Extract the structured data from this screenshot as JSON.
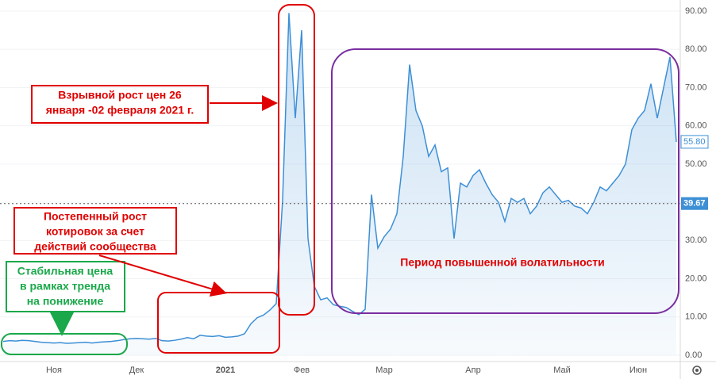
{
  "chart_data": {
    "type": "area",
    "categories": [
      null,
      null,
      null,
      null,
      null,
      null,
      null,
      null,
      "Ноя",
      null,
      null,
      null,
      null,
      null,
      null,
      null,
      null,
      null,
      null,
      null,
      null,
      "Дек",
      null,
      null,
      null,
      null,
      null,
      null,
      null,
      null,
      null,
      null,
      null,
      null,
      null,
      "2021",
      null,
      null,
      null,
      null,
      null,
      null,
      null,
      null,
      null,
      null,
      null,
      "Фев",
      null,
      null,
      null,
      null,
      null,
      null,
      null,
      null,
      null,
      null,
      null,
      null,
      "Мар",
      null,
      null,
      null,
      null,
      null,
      null,
      null,
      null,
      null,
      null,
      null,
      null,
      null,
      "Апр",
      null,
      null,
      null,
      null,
      null,
      null,
      null,
      null,
      null,
      null,
      null,
      null,
      null,
      "Май",
      null,
      null,
      null,
      null,
      null,
      null,
      null,
      null,
      null,
      null,
      null,
      "Июн",
      null,
      null,
      null,
      null,
      null,
      null
    ],
    "values": [
      3.6,
      3.8,
      3.7,
      3.9,
      3.8,
      3.6,
      3.4,
      3.3,
      3.2,
      3.3,
      3.1,
      3.2,
      3.3,
      3.4,
      3.2,
      3.4,
      3.5,
      3.6,
      3.8,
      4.1,
      4.3,
      4.4,
      4.3,
      4.2,
      4.4,
      3.8,
      3.7,
      3.9,
      4.2,
      4.6,
      4.3,
      5.2,
      5.0,
      4.9,
      5.1,
      4.7,
      4.8,
      5.0,
      5.6,
      8.2,
      9.8,
      10.5,
      11.8,
      13.5,
      40.5,
      89.5,
      62.0,
      85.0,
      30.5,
      18.0,
      14.5,
      15.0,
      13.2,
      12.8,
      12.5,
      11.5,
      10.6,
      12.0,
      42.0,
      28.0,
      31.0,
      33.0,
      37.0,
      52.0,
      76.0,
      64.0,
      60.0,
      52.0,
      55.0,
      48.0,
      49.0,
      30.5,
      45.0,
      44.0,
      47.0,
      48.5,
      45.0,
      42.0,
      40.0,
      35.0,
      41.0,
      40.0,
      41.0,
      37.0,
      39.0,
      42.5,
      44.0,
      42.0,
      40.0,
      40.5,
      39.0,
      38.5,
      37.0,
      40.0,
      44.0,
      43.0,
      45.0,
      47.0,
      50.0,
      59.0,
      62.0,
      64.0,
      71.0,
      62.0,
      70.0,
      78.0,
      55.8
    ],
    "color": "#3d8fd6",
    "ylim": [
      0,
      90
    ],
    "yticks": [
      {
        "value": 0,
        "label": "0.00"
      },
      {
        "value": 10,
        "label": "10.00"
      },
      {
        "value": 20,
        "label": "20.00"
      },
      {
        "value": 30,
        "label": "30.00"
      },
      {
        "value": 40,
        "label": "40.00"
      },
      {
        "value": 50,
        "label": "50.00"
      },
      {
        "value": 60,
        "label": "60.00"
      },
      {
        "value": 70,
        "label": "70.00"
      },
      {
        "value": 80,
        "label": "80.00"
      },
      {
        "value": 90,
        "label": "90.00"
      }
    ],
    "grid": true,
    "price_lines": [
      {
        "value": 55.8,
        "label": "55.80",
        "style": "outline"
      },
      {
        "value": 39.67,
        "label": "39.67",
        "style": "filled"
      }
    ],
    "annotations": [
      {
        "lines": [
          "Взрывной рост цен 26",
          "января -02 февраля 2021 г."
        ],
        "color": "#e00000"
      },
      {
        "lines": [
          "Постепенный рост",
          "котировок за счет",
          "действий сообщества"
        ],
        "color": "#e00000"
      },
      {
        "lines": [
          "Стабильная цена",
          "в рамках тренда",
          "на понижение"
        ],
        "color": "#1aa84a"
      },
      {
        "lines": [
          "Период повышенной волатильности"
        ],
        "color": "#e00000"
      }
    ]
  }
}
